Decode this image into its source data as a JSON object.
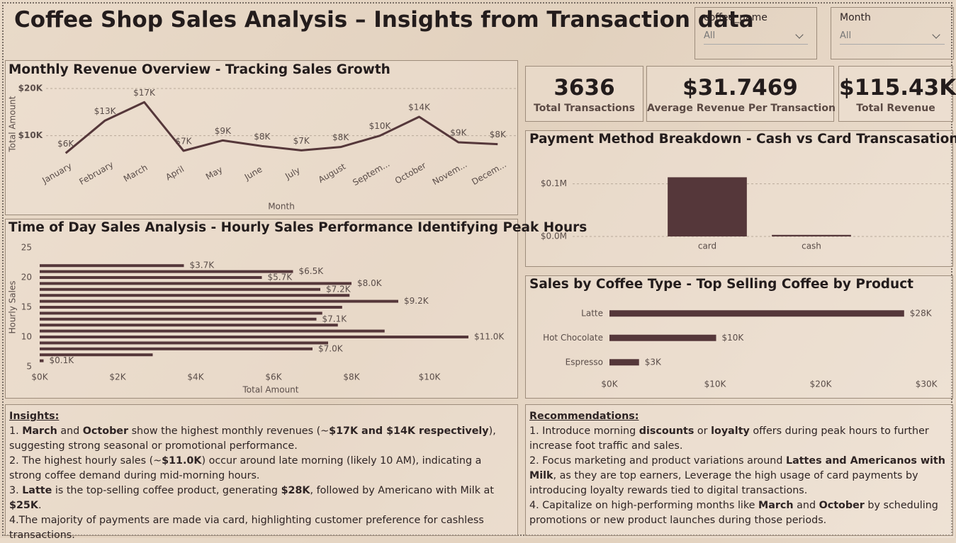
{
  "header": {
    "title": "Coffee Shop Sales Analysis – Insights from Transaction data"
  },
  "filters": [
    {
      "label": "coffee_name",
      "value": "All"
    },
    {
      "label": "Month",
      "value": "All"
    }
  ],
  "kpis": [
    {
      "value": "3636",
      "label": "Total Transactions"
    },
    {
      "value": "$31.7469",
      "label": "Average Revenue Per Transaction"
    },
    {
      "value": "$115.43K",
      "label": "Total Revenue"
    }
  ],
  "chart_data": [
    {
      "type": "line",
      "title": "Monthly Revenue Overview - Tracking Sales Growth",
      "x_label": "Month",
      "y_label": "Total Amount",
      "categories": [
        "January",
        "February",
        "March",
        "April",
        "May",
        "June",
        "July",
        "August",
        "Septem...",
        "October",
        "Novem...",
        "Decem..."
      ],
      "values": [
        6300,
        13200,
        17100,
        6800,
        9000,
        7800,
        6900,
        7600,
        10000,
        14000,
        8600,
        8200
      ],
      "value_labels": [
        "$6K",
        "$13K",
        "$17K",
        "$7K",
        "$9K",
        "$8K",
        "$7K",
        "$8K",
        "$10K",
        "$14K",
        "$9K",
        "$8K"
      ],
      "color": "#55373a",
      "ylim": [
        5000,
        21500
      ],
      "yticks": [
        {
          "value": 10000,
          "label": "$10K"
        },
        {
          "value": 20000,
          "label": "$20K"
        }
      ],
      "grid": true
    },
    {
      "type": "hbar",
      "title": "Time of Day Sales Analysis - Hourly Sales Performance Identifying Peak Hours",
      "x_label": "Total Amount",
      "y_label": "Hourly Sales",
      "y": [
        6,
        7,
        8,
        9,
        10,
        11,
        12,
        13,
        14,
        15,
        16,
        17,
        18,
        19,
        20,
        21,
        22
      ],
      "values": [
        100,
        2900,
        7000,
        7400,
        11000,
        8850,
        7650,
        7100,
        7250,
        7760,
        9200,
        7950,
        7200,
        8000,
        5700,
        6500,
        3700
      ],
      "value_labels": [
        "$0.1K",
        null,
        "$7.0K",
        null,
        "$11.0K",
        null,
        null,
        "$7.1K",
        null,
        null,
        "$9.2K",
        null,
        "$7.2K",
        "$8.0K",
        "$5.7K",
        "$6.5K",
        "$3.7K"
      ],
      "color": "#55373a",
      "xlim": [
        0,
        12000
      ],
      "xticks": [
        {
          "value": 0,
          "label": "$0K"
        },
        {
          "value": 2000,
          "label": "$2K"
        },
        {
          "value": 4000,
          "label": "$4K"
        },
        {
          "value": 6000,
          "label": "$6K"
        },
        {
          "value": 8000,
          "label": "$8K"
        },
        {
          "value": 10000,
          "label": "$10K"
        }
      ],
      "ylim": [
        5,
        25
      ],
      "yticks": [
        5,
        10,
        15,
        20,
        25
      ],
      "grid": false
    },
    {
      "type": "bar",
      "title": "Payment Method Breakdown - Cash vs Card Transcasation",
      "categories": [
        "card",
        "cash"
      ],
      "values": [
        112400,
        3000
      ],
      "color": "#55373a",
      "ylim": [
        0,
        160000
      ],
      "yticks": [
        {
          "value": 0,
          "label": "$0.0M"
        },
        {
          "value": 100000,
          "label": "$0.1M"
        }
      ],
      "grid": true
    },
    {
      "type": "hbar",
      "title": "Sales by Coffee Type - Top Selling Coffee by Product",
      "categories": [
        "Latte",
        "Hot Chocolate",
        "Espresso"
      ],
      "values": [
        27900,
        10100,
        2800
      ],
      "value_labels": [
        "$28K",
        "$10K",
        "$3K"
      ],
      "color": "#55373a",
      "xlim": [
        0,
        31000
      ],
      "xticks": [
        {
          "value": 0,
          "label": "$0K"
        },
        {
          "value": 10000,
          "label": "$10K"
        },
        {
          "value": 20000,
          "label": "$20K"
        },
        {
          "value": 30000,
          "label": "$30K"
        }
      ],
      "grid": false
    }
  ],
  "insights": {
    "title": "Insights:",
    "items": [
      [
        "1. ",
        "March",
        " and ",
        "October",
        " show the highest monthly revenues (~",
        "$17K and $14K respectively",
        "), suggesting strong seasonal or promotional performance."
      ],
      [
        "2. The highest hourly sales (~",
        "$11.0K",
        ") occur around late morning (likely 10 AM), indicating a strong coffee demand during mid-morning hours."
      ],
      [
        "3. ",
        "Latte",
        " is the top-selling coffee product, generating ",
        "$28K",
        ", followed by Americano with Milk at ",
        "$25K",
        "."
      ],
      [
        "4.The majority of payments are made via card, highlighting customer preference for cashless transactions."
      ]
    ]
  },
  "recommendations": {
    "title": "Recommendations:",
    "items": [
      [
        "1. Introduce morning ",
        "discounts",
        " or ",
        "loyalty",
        " offers during peak hours to further increase foot traffic and sales."
      ],
      [
        "2. Focus marketing and product variations around ",
        "Lattes and Americanos with Milk",
        ", as they are top earners, Leverage the high usage of card payments by introducing loyalty rewards tied to digital transactions."
      ],
      [
        "4. Capitalize on high-performing months like ",
        "March",
        " and ",
        "October",
        " by scheduling promotions or new product launches during those periods."
      ]
    ]
  }
}
